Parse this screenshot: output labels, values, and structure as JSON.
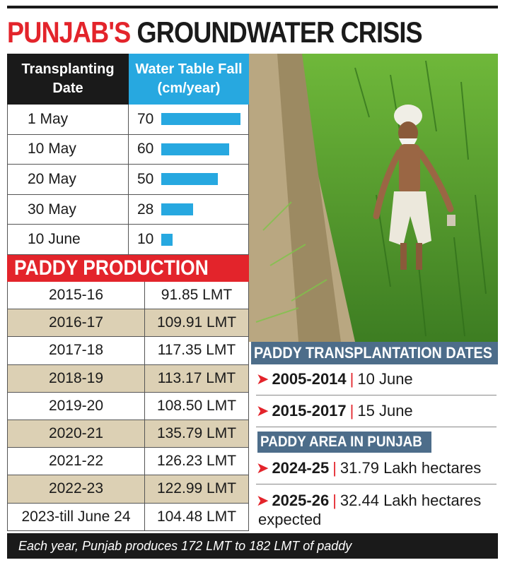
{
  "title": {
    "part1": "PUNJAB'S",
    "part2": "GROUNDWATER CRISIS"
  },
  "water_table": {
    "header_date": "Transplanting Date",
    "header_fall": "Water Table Fall (cm/year)"
  },
  "paddy_production": {
    "heading": "PADDY PRODUCTION",
    "rows": [
      {
        "year": "2015-16",
        "value": "91.85 LMT"
      },
      {
        "year": "2016-17",
        "value": "109.91 LMT"
      },
      {
        "year": "2017-18",
        "value": "117.35 LMT"
      },
      {
        "year": "2018-19",
        "value": "113.17 LMT"
      },
      {
        "year": "2019-20",
        "value": "108.50 LMT"
      },
      {
        "year": "2020-21",
        "value": "135.79 LMT"
      },
      {
        "year": "2021-22",
        "value": "126.23 LMT"
      },
      {
        "year": "2022-23",
        "value": "122.99 LMT"
      },
      {
        "year": "2023-till June 24",
        "value": "104.48 LMT"
      }
    ]
  },
  "transplantation": {
    "heading": "PADDY TRANSPLANTATION DATES",
    "items": [
      {
        "period": "2005-2014",
        "date": "10 June"
      },
      {
        "period": "2015-2017",
        "date": "15 June"
      }
    ]
  },
  "area": {
    "heading": "PADDY AREA IN PUNJAB",
    "items": [
      {
        "year": "2024-25",
        "value": "31.79 Lakh hectares"
      },
      {
        "year": "2025-26",
        "value": "32.44 Lakh hectares",
        "note": "expected"
      }
    ]
  },
  "footer": "Each year, Punjab produces 172 LMT to 182 LMT of paddy",
  "colors": {
    "red": "#e3242b",
    "blue": "#27a8e0",
    "slate": "#4d6d8a",
    "tan": "#dcd0b4"
  },
  "chart_data": {
    "type": "bar",
    "orientation": "horizontal",
    "title": "Water Table Fall (cm/year)",
    "categories": [
      "1 May",
      "10 May",
      "20 May",
      "30 May",
      "10 June"
    ],
    "values": [
      70,
      60,
      50,
      28,
      10
    ],
    "xlabel": "Water Table Fall (cm/year)",
    "ylabel": "Transplanting Date",
    "xlim": [
      0,
      70
    ]
  }
}
